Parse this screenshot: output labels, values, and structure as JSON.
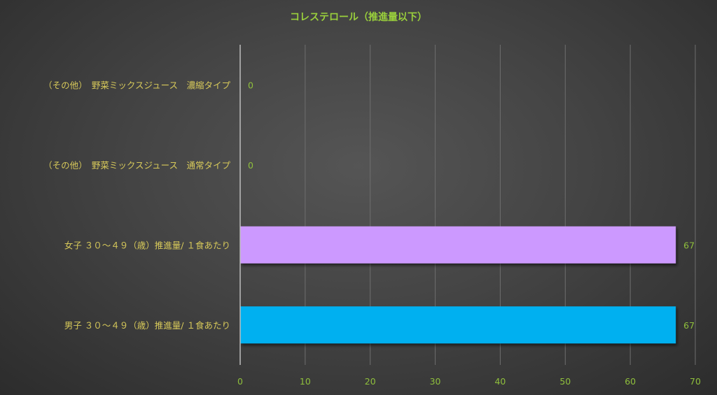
{
  "chart_data": {
    "type": "bar",
    "orientation": "horizontal",
    "title": "コレステロール（推進量以下）",
    "categories": [
      "（その他）　野菜ミックスジュース　濃縮タイプ",
      "（その他）　野菜ミックスジュース　通常タイプ",
      "女子 ３０～４９（歳）推進量/ １食あたり",
      "男子 ３０～４９（歳）推進量/ １食あたり"
    ],
    "values": [
      0,
      0,
      67,
      67
    ],
    "data_labels": [
      "0",
      "0",
      "67",
      "67"
    ],
    "bar_colors": [
      "#cc99ff",
      "#cc99ff",
      "#cc99ff",
      "#00b0f0"
    ],
    "xlim": [
      0,
      70
    ],
    "xticks": [
      0,
      10,
      20,
      30,
      40,
      50,
      60,
      70
    ],
    "xlabel": "",
    "ylabel": "",
    "grid": true,
    "legend": "none"
  },
  "colors": {
    "title": "#9ad03c",
    "category_label": "#d7c95a",
    "tick_label": "#8fbf3c",
    "gridline": "#6e6e6e",
    "axis_line": "#bdbdbd"
  }
}
